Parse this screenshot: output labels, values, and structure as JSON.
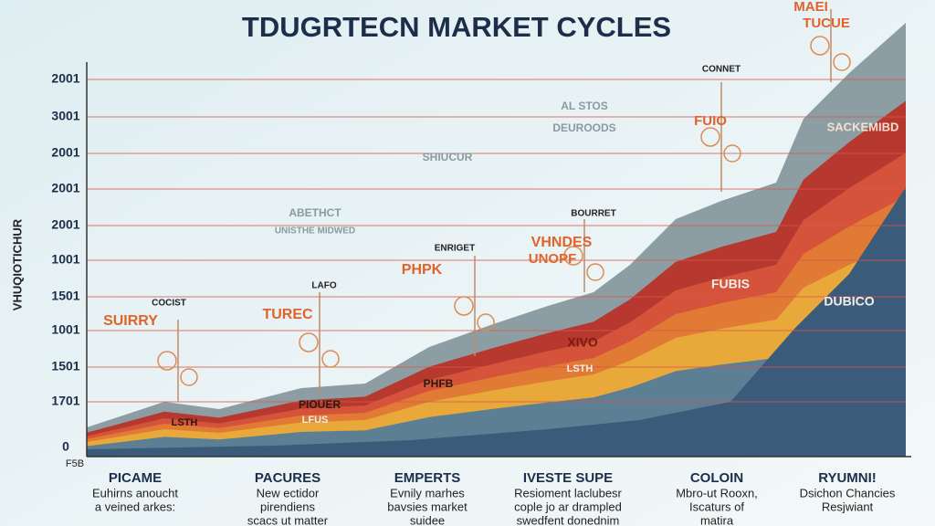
{
  "title": "TDUGRTECN MARKET CYCLES",
  "y_axis_label": "VHUQIOTICHUR",
  "y_labels": [
    "2001",
    "3001",
    "2001",
    "2001",
    "2001",
    "1001",
    "1501",
    "1001",
    "1501",
    "1701",
    "0"
  ],
  "x_axis_corner": "F5B",
  "annotations": [
    {
      "text": "MAEI"
    },
    {
      "text": "TUCUE"
    },
    {
      "text": "CONNET"
    },
    {
      "text": "AL STOS"
    },
    {
      "text": "DEUROODS"
    },
    {
      "text": "SACKEMIBD"
    },
    {
      "text": "FUIO"
    },
    {
      "text": "SHIUCUR"
    },
    {
      "text": "ABETHCT"
    },
    {
      "text": "UNISTHE MIDWED"
    },
    {
      "text": "BOURRET"
    },
    {
      "text": "VHNDES"
    },
    {
      "text": "UNOPF"
    },
    {
      "text": "ENRIGET"
    },
    {
      "text": "PHPK"
    },
    {
      "text": "FUBIS"
    },
    {
      "text": "DUBICO"
    },
    {
      "text": "LAFO"
    },
    {
      "text": "TUREC"
    },
    {
      "text": "COCIST"
    },
    {
      "text": "SUIRRY"
    },
    {
      "text": "XIVO"
    },
    {
      "text": "LSTH"
    },
    {
      "text": "PHFB"
    },
    {
      "text": "PIOUER"
    },
    {
      "text": "LFUS"
    },
    {
      "text": "LSTH"
    }
  ],
  "columns": [
    {
      "heading": "PICAME",
      "lines": [
        "Euhirns anoucht",
        "a veined arkes:"
      ]
    },
    {
      "heading": "PACURES",
      "lines": [
        "New ectidor",
        "pirendiens",
        "scacs ut matter"
      ]
    },
    {
      "heading": "EMPERTS",
      "lines": [
        "Evnily marhes",
        "bavsies market",
        "suidee"
      ]
    },
    {
      "heading": "IVESTE SUPE",
      "lines": [
        "Resioment laclubesr",
        "cople jo ar drampled",
        "swedfent donednim"
      ]
    },
    {
      "heading": "COLOIN",
      "lines": [
        "Mbro-ut Rooxn,",
        "Iscaturs of",
        "matira"
      ]
    },
    {
      "heading": "RYUMNI!",
      "lines": [
        "Dsichon Chancies",
        "Resjwiant"
      ]
    }
  ]
}
